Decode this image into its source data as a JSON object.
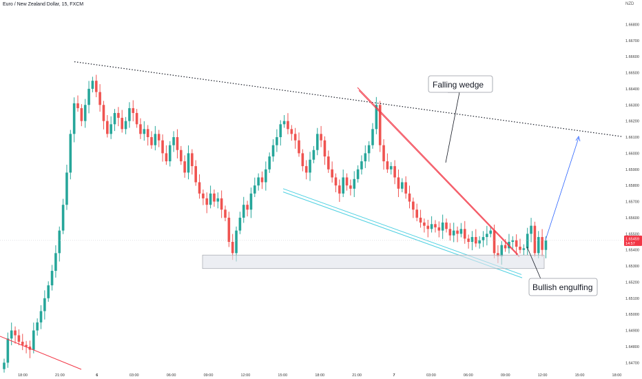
{
  "header": {
    "title": "Euro / New Zealand Dollar, 15, FXCM",
    "currency": "NZD"
  },
  "price_tag": {
    "price": "1.65459",
    "countdown": "14:57"
  },
  "colors": {
    "up": "#26a69a",
    "down": "#ef5350",
    "tag": "#f23645",
    "wedge_top": "#f23645",
    "wedge_bottom": "#4dd0e1",
    "arrow": "#2962ff"
  },
  "annotations": [
    {
      "text": "Falling wedge"
    },
    {
      "text": "Bullish engulfing"
    }
  ],
  "chart_data": {
    "type": "candlestick",
    "title": "Euro / New Zealand Dollar, 15, FXCM",
    "y_unit": "NZD",
    "ylim": [
      1.6465,
      1.669
    ],
    "y_ticks": [
      "1.66800",
      "1.66700",
      "1.66600",
      "1.66500",
      "1.66400",
      "1.66300",
      "1.66200",
      "1.66100",
      "1.66000",
      "1.65900",
      "1.65800",
      "1.65700",
      "1.65600",
      "1.65500",
      "1.65400",
      "1.65300",
      "1.65200",
      "1.65100",
      "1.65000",
      "1.64900",
      "1.64800",
      "1.64700"
    ],
    "x_ticks": [
      {
        "label": "18:00",
        "bold": false
      },
      {
        "label": "21:00",
        "bold": false
      },
      {
        "label": "6",
        "bold": true
      },
      {
        "label": "03:00",
        "bold": false
      },
      {
        "label": "06:00",
        "bold": false
      },
      {
        "label": "09:00",
        "bold": false
      },
      {
        "label": "12:00",
        "bold": false
      },
      {
        "label": "15:00",
        "bold": false
      },
      {
        "label": "18:00",
        "bold": false
      },
      {
        "label": "21:00",
        "bold": false
      },
      {
        "label": "7",
        "bold": true
      },
      {
        "label": "03:00",
        "bold": false
      },
      {
        "label": "06:00",
        "bold": false
      },
      {
        "label": "09:00",
        "bold": false
      },
      {
        "label": "12:00",
        "bold": false
      },
      {
        "label": "15:00",
        "bold": false
      },
      {
        "label": "18:00",
        "bold": false
      }
    ],
    "grid": false,
    "last_price": 1.65459,
    "closes": [
      1.647,
      1.6485,
      1.649,
      1.6487,
      1.6483,
      1.6481,
      1.648,
      1.6478,
      1.649,
      1.6495,
      1.6502,
      1.651,
      1.6518,
      1.6527,
      1.6538,
      1.6552,
      1.6568,
      1.6588,
      1.6612,
      1.6631,
      1.6628,
      1.662,
      1.663,
      1.664,
      1.6645,
      1.6638,
      1.663,
      1.662,
      1.6612,
      1.6618,
      1.6625,
      1.6622,
      1.6615,
      1.662,
      1.6628,
      1.6625,
      1.6618,
      1.6612,
      1.6615,
      1.661,
      1.6605,
      1.6612,
      1.6608,
      1.66,
      1.6595,
      1.6605,
      1.661,
      1.6602,
      1.6595,
      1.6588,
      1.66,
      1.6592,
      1.6582,
      1.6575,
      1.6572,
      1.6568,
      1.6575,
      1.657,
      1.6572,
      1.6565,
      1.656,
      1.6545,
      1.6538,
      1.6552,
      1.656,
      1.6568,
      1.6565,
      1.6575,
      1.658,
      1.6585,
      1.6582,
      1.659,
      1.6598,
      1.6605,
      1.661,
      1.6618,
      1.662,
      1.6615,
      1.6612,
      1.6608,
      1.66,
      1.6592,
      1.6588,
      1.6596,
      1.6602,
      1.6612,
      1.6608,
      1.6598,
      1.659,
      1.6585,
      1.658,
      1.6575,
      1.6585,
      1.658,
      1.6578,
      1.6584,
      1.659,
      1.6595,
      1.66,
      1.6605,
      1.6615,
      1.663,
      1.6605,
      1.6595,
      1.659,
      1.6592,
      1.6585,
      1.6578,
      1.6582,
      1.6575,
      1.657,
      1.6565,
      1.656,
      1.6557,
      1.6555,
      1.6553,
      1.6556,
      1.6554,
      1.6552,
      1.6557,
      1.6553,
      1.6549,
      1.6552,
      1.655,
      1.6553,
      1.6547,
      1.6545,
      1.6548,
      1.6544,
      1.6546,
      1.6548,
      1.655,
      1.6552,
      1.6538,
      1.6536,
      1.6543,
      1.6541,
      1.6545,
      1.6546,
      1.6542,
      1.654,
      1.6541,
      1.655,
      1.6555,
      1.6538,
      1.6548,
      1.654,
      1.65459
    ],
    "callouts": [
      "Falling wedge",
      "Bullish engulfing"
    ]
  }
}
